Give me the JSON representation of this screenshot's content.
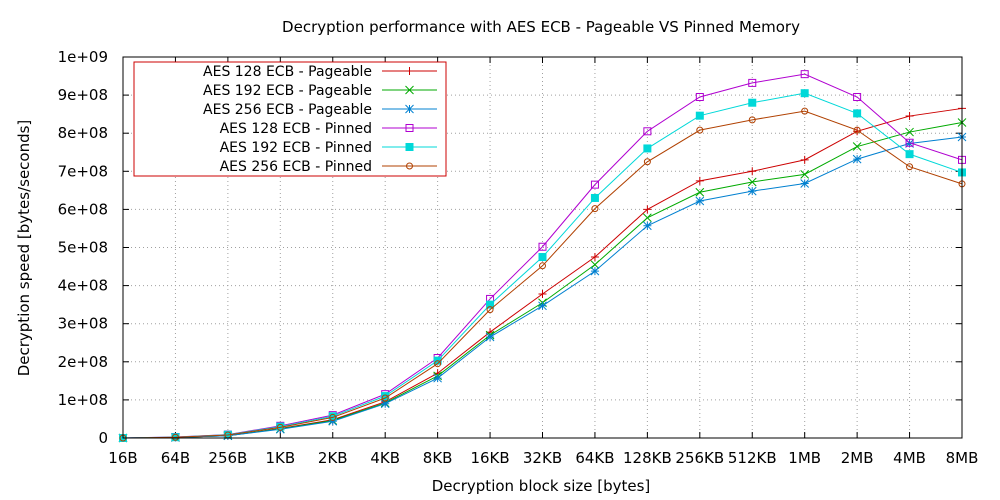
{
  "chart_data": {
    "type": "line",
    "title": "Decryption performance with AES ECB - Pageable VS Pinned Memory",
    "xlabel": "Decryption block size [bytes]",
    "ylabel": "Decryption speed [bytes/seconds]",
    "categories": [
      "16B",
      "64B",
      "256B",
      "1KB",
      "2KB",
      "4KB",
      "8KB",
      "16KB",
      "32KB",
      "64KB",
      "128KB",
      "256KB",
      "512KB",
      "1MB",
      "2MB",
      "4MB",
      "8MB"
    ],
    "ylim": [
      0,
      1000000000
    ],
    "yticks": [
      0,
      100000000,
      200000000,
      300000000,
      400000000,
      500000000,
      600000000,
      700000000,
      800000000,
      900000000,
      1000000000
    ],
    "ytick_labels": [
      "0",
      "1e+08",
      "2e+08",
      "3e+08",
      "4e+08",
      "5e+08",
      "6e+08",
      "7e+08",
      "8e+08",
      "9e+08",
      "1e+09"
    ],
    "grid": true,
    "legend_position": "top-left",
    "series": [
      {
        "name": "AES 128 ECB - Pageable",
        "color": "#cc0000",
        "marker": "plus",
        "values": [
          0,
          1500000,
          6000000,
          25000000,
          48000000,
          95000000,
          170000000,
          278000000,
          378000000,
          475000000,
          600000000,
          675000000,
          700000000,
          730000000,
          805000000,
          845000000,
          865000000
        ]
      },
      {
        "name": "AES 192 ECB - Pageable",
        "color": "#00aa00",
        "marker": "cross",
        "values": [
          0,
          1500000,
          6000000,
          24000000,
          46000000,
          92000000,
          163000000,
          270000000,
          355000000,
          455000000,
          578000000,
          645000000,
          672000000,
          692000000,
          765000000,
          803000000,
          828000000
        ]
      },
      {
        "name": "AES 256 ECB - Pageable",
        "color": "#0080d0",
        "marker": "star",
        "values": [
          0,
          1500000,
          6000000,
          23000000,
          44000000,
          90000000,
          157000000,
          265000000,
          347000000,
          438000000,
          557000000,
          622000000,
          648000000,
          668000000,
          732000000,
          773000000,
          790000000
        ]
      },
      {
        "name": "AES 128 ECB - Pinned",
        "color": "#b000d0",
        "marker": "square",
        "values": [
          0,
          2500000,
          9000000,
          32000000,
          60000000,
          115000000,
          210000000,
          365000000,
          502000000,
          665000000,
          805000000,
          895000000,
          932000000,
          955000000,
          895000000,
          775000000,
          730000000
        ]
      },
      {
        "name": "AES 192 ECB - Pinned",
        "color": "#00d8d8",
        "marker": "filled-square",
        "values": [
          0,
          2200000,
          8500000,
          30000000,
          57000000,
          110000000,
          203000000,
          350000000,
          475000000,
          630000000,
          760000000,
          846000000,
          880000000,
          905000000,
          852000000,
          745000000,
          697000000
        ]
      },
      {
        "name": "AES 256 ECB - Pinned",
        "color": "#b04000",
        "marker": "circle",
        "values": [
          0,
          2000000,
          8000000,
          28000000,
          54000000,
          105000000,
          195000000,
          337000000,
          452000000,
          602000000,
          725000000,
          808000000,
          835000000,
          858000000,
          808000000,
          712000000,
          667000000
        ]
      }
    ]
  }
}
